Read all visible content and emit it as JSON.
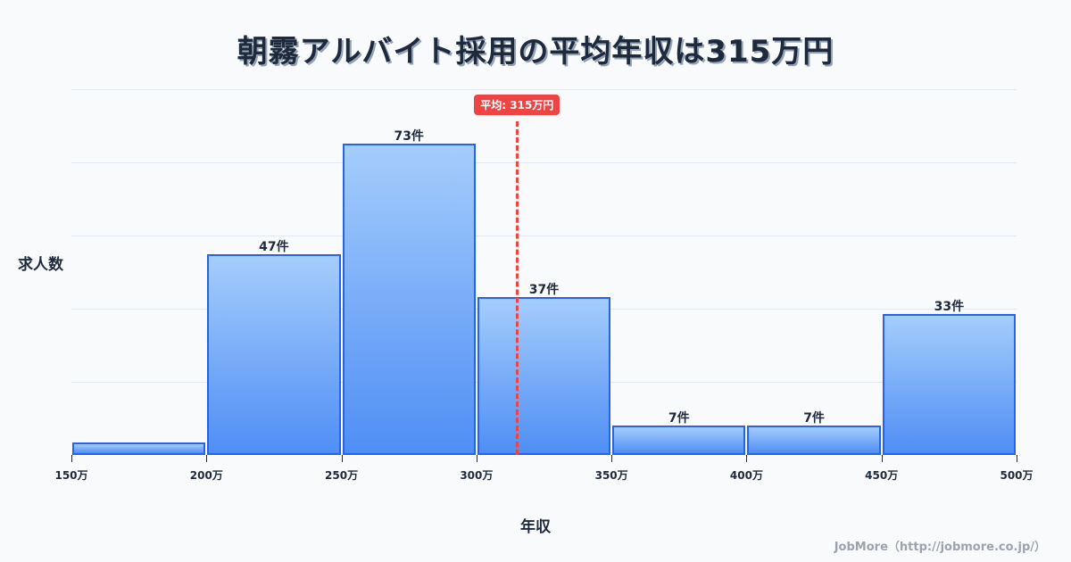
{
  "title": "朝霧アルバイト採用の平均年収は315万円",
  "ylabel": "求人数",
  "xlabel": "年収",
  "credit": "JobMore（http://jobmore.co.jp/）",
  "mean": {
    "value": 315,
    "label": "平均: 315万円",
    "color": "#ef4444"
  },
  "colors": {
    "bar_border": "#2563eb",
    "bar_top": "#a5cdfc",
    "bar_bottom": "#4f8ef5",
    "grid": "#e2e8f0",
    "background": "#f8fafc",
    "text": "#1e293b"
  },
  "chart_data": {
    "type": "bar",
    "title": "朝霧アルバイト採用の平均年収は315万円",
    "xlabel": "年収",
    "ylabel": "求人数",
    "bins": [
      [
        150,
        200
      ],
      [
        200,
        250
      ],
      [
        250,
        300
      ],
      [
        300,
        350
      ],
      [
        350,
        400
      ],
      [
        400,
        450
      ],
      [
        450,
        500
      ]
    ],
    "categories": [
      "150-200万",
      "200-250万",
      "250-300万",
      "300-350万",
      "350-400万",
      "400-450万",
      "450-500万"
    ],
    "values": [
      3,
      47,
      73,
      37,
      7,
      7,
      33
    ],
    "data_labels": [
      "",
      "47件",
      "73件",
      "37件",
      "7件",
      "7件",
      "33件"
    ],
    "x_ticks": [
      "150万",
      "200万",
      "250万",
      "300万",
      "350万",
      "400万",
      "450万",
      "500万"
    ],
    "xlim": [
      150,
      500
    ],
    "ylim": [
      0,
      85.8
    ],
    "grid": true,
    "annotations": [
      {
        "type": "vline",
        "x": 315,
        "label": "平均: 315万円"
      }
    ]
  }
}
